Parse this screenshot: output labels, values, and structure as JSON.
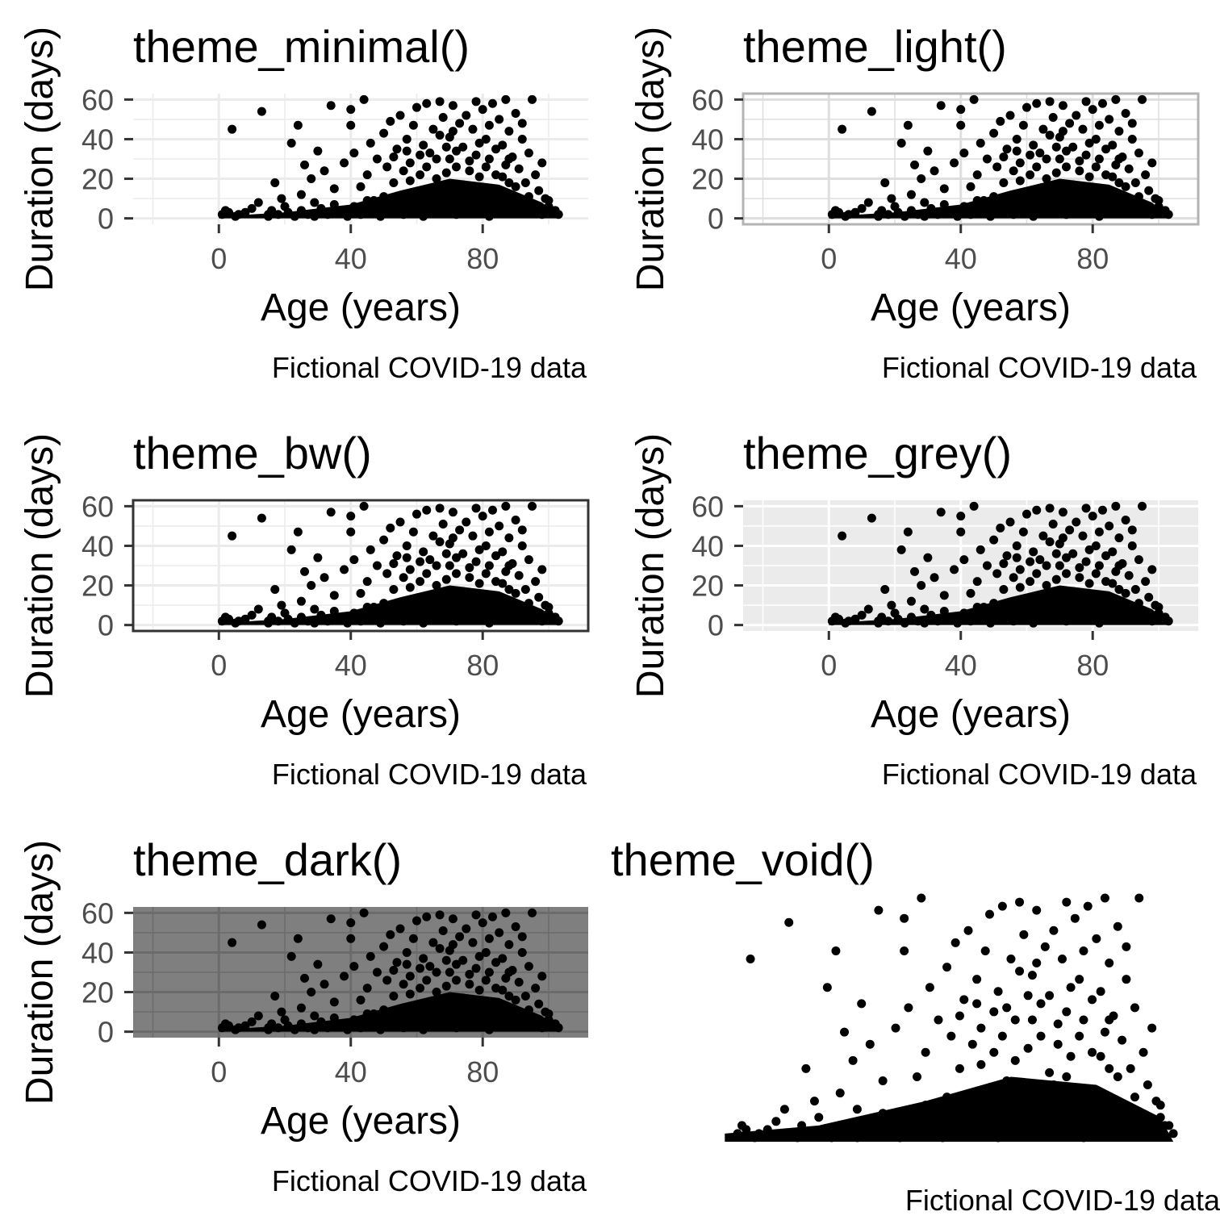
{
  "chart_data": [
    {
      "type": "scatter",
      "title": "theme_minimal()",
      "xlabel": "Age (years)",
      "ylabel": "Duration (days)",
      "caption": "Fictional COVID-19 data",
      "xticks": [
        "0",
        "40",
        "80"
      ],
      "yticks": [
        "0",
        "20",
        "40",
        "60"
      ],
      "xlim": [
        -26,
        112
      ],
      "ylim": [
        -3,
        63
      ],
      "grid": true,
      "panel_background": "#ffffff",
      "panel_border": "none",
      "grid_color": "#ebebeb"
    },
    {
      "type": "scatter",
      "title": "theme_light()",
      "xlabel": "Age (years)",
      "ylabel": "Duration (days)",
      "caption": "Fictional COVID-19 data",
      "xticks": [
        "0",
        "40",
        "80"
      ],
      "yticks": [
        "0",
        "20",
        "40",
        "60"
      ],
      "xlim": [
        -26,
        112
      ],
      "ylim": [
        -3,
        63
      ],
      "grid": true,
      "panel_background": "#ffffff",
      "panel_border": "#b3b3b3",
      "grid_color": "#dedede"
    },
    {
      "type": "scatter",
      "title": "theme_bw()",
      "xlabel": "Age (years)",
      "ylabel": "Duration (days)",
      "caption": "Fictional COVID-19 data",
      "xticks": [
        "0",
        "40",
        "80"
      ],
      "yticks": [
        "0",
        "20",
        "40",
        "60"
      ],
      "xlim": [
        -26,
        112
      ],
      "ylim": [
        -3,
        63
      ],
      "grid": true,
      "panel_background": "#ffffff",
      "panel_border": "#333333",
      "grid_color": "#ebebeb"
    },
    {
      "type": "scatter",
      "title": "theme_grey()",
      "xlabel": "Age (years)",
      "ylabel": "Duration (days)",
      "caption": "Fictional COVID-19 data",
      "xticks": [
        "0",
        "40",
        "80"
      ],
      "yticks": [
        "0",
        "20",
        "40",
        "60"
      ],
      "xlim": [
        -26,
        112
      ],
      "ylim": [
        -3,
        63
      ],
      "grid": true,
      "panel_background": "#ebebeb",
      "panel_border": "none",
      "grid_color": "#ffffff"
    },
    {
      "type": "scatter",
      "title": "theme_dark()",
      "xlabel": "Age (years)",
      "ylabel": "Duration (days)",
      "caption": "Fictional COVID-19 data",
      "xticks": [
        "0",
        "40",
        "80"
      ],
      "yticks": [
        "0",
        "20",
        "40",
        "60"
      ],
      "xlim": [
        -26,
        112
      ],
      "ylim": [
        -3,
        63
      ],
      "grid": true,
      "panel_background": "#7f7f7f",
      "panel_border": "none",
      "grid_color": "#6b6b6b"
    },
    {
      "type": "scatter",
      "title": "theme_void()",
      "xlabel": "",
      "ylabel": "",
      "caption": "Fictional COVID-19 data",
      "xticks": [],
      "yticks": [],
      "xlim": [
        -3,
        106
      ],
      "ylim": [
        -1,
        61
      ],
      "grid": false,
      "panel_background": "#ffffff",
      "panel_border": "none",
      "grid_color": ""
    }
  ],
  "scatter_points": [
    [
      1,
      2
    ],
    [
      2,
      4
    ],
    [
      3,
      3
    ],
    [
      4,
      45
    ],
    [
      5,
      1
    ],
    [
      6,
      2
    ],
    [
      8,
      3
    ],
    [
      10,
      5
    ],
    [
      12,
      8
    ],
    [
      13,
      54
    ],
    [
      15,
      2
    ],
    [
      17,
      18
    ],
    [
      19,
      10
    ],
    [
      20,
      6
    ],
    [
      22,
      38
    ],
    [
      24,
      47
    ],
    [
      25,
      12
    ],
    [
      26,
      27
    ],
    [
      28,
      20
    ],
    [
      29,
      8
    ],
    [
      30,
      34
    ],
    [
      32,
      24
    ],
    [
      34,
      57
    ],
    [
      35,
      15
    ],
    [
      36,
      4
    ],
    [
      38,
      28
    ],
    [
      40,
      55
    ],
    [
      40,
      47
    ],
    [
      41,
      33
    ],
    [
      43,
      16
    ],
    [
      44,
      60
    ],
    [
      45,
      22
    ],
    [
      46,
      38
    ],
    [
      47,
      9
    ],
    [
      48,
      30
    ],
    [
      50,
      43
    ],
    [
      51,
      26
    ],
    [
      52,
      49
    ],
    [
      53,
      18
    ],
    [
      54,
      35
    ],
    [
      55,
      52
    ],
    [
      56,
      12
    ],
    [
      57,
      40
    ],
    [
      58,
      28
    ],
    [
      59,
      47
    ],
    [
      60,
      56
    ],
    [
      61,
      22
    ],
    [
      62,
      37
    ],
    [
      63,
      58
    ],
    [
      64,
      15
    ],
    [
      65,
      45
    ],
    [
      66,
      30
    ],
    [
      67,
      59
    ],
    [
      68,
      51
    ],
    [
      69,
      23
    ],
    [
      70,
      41
    ],
    [
      71,
      57
    ],
    [
      72,
      34
    ],
    [
      73,
      48
    ],
    [
      74,
      17
    ],
    [
      75,
      52
    ],
    [
      76,
      29
    ],
    [
      77,
      45
    ],
    [
      78,
      59
    ],
    [
      79,
      38
    ],
    [
      80,
      55
    ],
    [
      81,
      26
    ],
    [
      82,
      47
    ],
    [
      83,
      58
    ],
    [
      84,
      35
    ],
    [
      85,
      50
    ],
    [
      86,
      21
    ],
    [
      87,
      60
    ],
    [
      88,
      44
    ],
    [
      89,
      31
    ],
    [
      90,
      53
    ],
    [
      91,
      25
    ],
    [
      92,
      40
    ],
    [
      93,
      18
    ],
    [
      94,
      33
    ],
    [
      95,
      60
    ],
    [
      96,
      22
    ],
    [
      97,
      14
    ],
    [
      98,
      28
    ],
    [
      99,
      10
    ],
    [
      100,
      6
    ],
    [
      101,
      4
    ],
    [
      103,
      2
    ],
    [
      64,
      33
    ],
    [
      72,
      26
    ],
    [
      58,
      19
    ],
    [
      79,
      21
    ],
    [
      86,
      37
    ],
    [
      67,
      42
    ],
    [
      75,
      14
    ],
    [
      82,
      30
    ],
    [
      53,
      31
    ],
    [
      60,
      13
    ],
    [
      69,
      36
    ],
    [
      90,
      16
    ],
    [
      15,
      1
    ],
    [
      16,
      4
    ],
    [
      18,
      2
    ],
    [
      21,
      3
    ],
    [
      23,
      1
    ],
    [
      25,
      4
    ],
    [
      27,
      2
    ],
    [
      29,
      1
    ],
    [
      31,
      5
    ],
    [
      33,
      2
    ],
    [
      35,
      7
    ],
    [
      37,
      3
    ],
    [
      39,
      1
    ],
    [
      41,
      6
    ],
    [
      43,
      2
    ],
    [
      45,
      9
    ],
    [
      47,
      4
    ],
    [
      49,
      1
    ],
    [
      50,
      11
    ],
    [
      52,
      3
    ],
    [
      54,
      8
    ],
    [
      56,
      2
    ],
    [
      58,
      12
    ],
    [
      60,
      5
    ],
    [
      62,
      1
    ],
    [
      64,
      9
    ],
    [
      66,
      3
    ],
    [
      68,
      14
    ],
    [
      70,
      6
    ],
    [
      72,
      2
    ],
    [
      74,
      10
    ],
    [
      76,
      4
    ],
    [
      78,
      16
    ],
    [
      80,
      7
    ],
    [
      82,
      1
    ],
    [
      84,
      12
    ],
    [
      86,
      5
    ],
    [
      88,
      18
    ],
    [
      90,
      8
    ],
    [
      92,
      3
    ],
    [
      94,
      11
    ],
    [
      96,
      6
    ],
    [
      98,
      2
    ],
    [
      100,
      9
    ],
    [
      102,
      4
    ],
    [
      56,
      24
    ],
    [
      61,
      32
    ],
    [
      66,
      20
    ],
    [
      71,
      44
    ],
    [
      76,
      24
    ],
    [
      81,
      40
    ],
    [
      87,
      27
    ],
    [
      92,
      48
    ],
    [
      63,
      26
    ],
    [
      74,
      36
    ],
    [
      84,
      22
    ],
    [
      70,
      30
    ],
    [
      57,
      34
    ],
    [
      78,
      32
    ],
    [
      88,
      30
    ]
  ]
}
